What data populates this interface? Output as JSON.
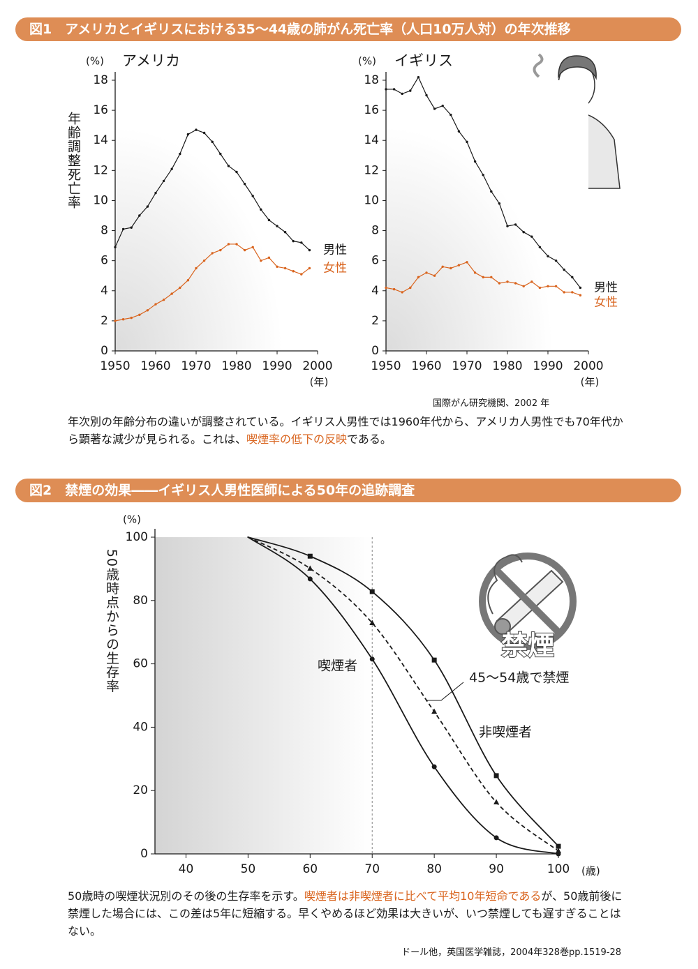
{
  "sections": [
    {
      "title": "図1　アメリカとイギリスにおける35～44歳の肺がん死亡率（人口10万人対）の年次推移",
      "source": "国際がん研究機関、2002 年",
      "caption": [
        {
          "text": "年次別の年齢分布の違いが調整されている。イギリス人男性では1960年代から、アメリカ人男性でも70年代から顕著な減少が見られる。これは、"
        },
        {
          "text": "喫煙率の低下の反映",
          "color": "#d9641e"
        },
        {
          "text": "である。"
        }
      ]
    },
    {
      "title": "図2　禁煙の効果――イギリス人男性医師による50年の追跡調査",
      "source": "ドール他，英国医学雑誌，2004年328巻pp.1519-28",
      "caption": [
        {
          "text": "50歳時の喫煙状況別のその後の生存率を示す。"
        },
        {
          "text": "喫煙者は非喫煙者に比べて平均10年短命である",
          "color": "#d9641e"
        },
        {
          "text": "が、50歳前後に禁煙した場合には、この差は5年に短縮する。早くやめるほど効果は大きいが、いつ禁煙しても遅すぎることはない。"
        }
      ]
    }
  ],
  "icon_label": "禁煙",
  "chart_data": [
    {
      "type": "line",
      "title": "アメリカ",
      "ylabel": "年齢調整死亡率",
      "y_unit": "(%)",
      "x_unit": "(年)",
      "x": [
        1950,
        1952,
        1954,
        1956,
        1958,
        1960,
        1962,
        1964,
        1966,
        1968,
        1970,
        1972,
        1974,
        1976,
        1978,
        1980,
        1982,
        1984,
        1986,
        1988,
        1990,
        1992,
        1994,
        1996,
        1998
      ],
      "xlim": [
        1950,
        2000
      ],
      "xticks": [
        1950,
        1960,
        1970,
        1980,
        1990,
        2000
      ],
      "ylim": [
        0,
        18
      ],
      "yticks": [
        0,
        2,
        4,
        6,
        8,
        10,
        12,
        14,
        16,
        18
      ],
      "series": [
        {
          "name": "男性",
          "color": "#1a1a1a",
          "values": [
            6.9,
            8.1,
            8.2,
            9.0,
            9.6,
            10.5,
            11.3,
            12.1,
            13.1,
            14.4,
            14.7,
            14.5,
            13.9,
            13.1,
            12.3,
            11.9,
            11.1,
            10.3,
            9.4,
            8.7,
            8.3,
            7.9,
            7.3,
            7.2,
            6.7
          ]
        },
        {
          "name": "女性",
          "color": "#d9641e",
          "values": [
            2.0,
            2.1,
            2.2,
            2.4,
            2.7,
            3.1,
            3.4,
            3.8,
            4.2,
            4.7,
            5.5,
            6.0,
            6.5,
            6.7,
            7.1,
            7.1,
            6.7,
            6.9,
            6.0,
            6.2,
            5.6,
            5.5,
            5.3,
            5.1,
            5.5
          ]
        }
      ]
    },
    {
      "type": "line",
      "title": "イギリス",
      "y_unit": "(%)",
      "x_unit": "(年)",
      "x": [
        1950,
        1952,
        1954,
        1956,
        1958,
        1960,
        1962,
        1964,
        1966,
        1968,
        1970,
        1972,
        1974,
        1976,
        1978,
        1980,
        1982,
        1984,
        1986,
        1988,
        1990,
        1992,
        1994,
        1996,
        1998
      ],
      "xlim": [
        1950,
        2000
      ],
      "xticks": [
        1950,
        1960,
        1970,
        1980,
        1990,
        2000
      ],
      "ylim": [
        0,
        18
      ],
      "yticks": [
        0,
        2,
        4,
        6,
        8,
        10,
        12,
        14,
        16,
        18
      ],
      "series": [
        {
          "name": "男性",
          "color": "#1a1a1a",
          "values": [
            17.4,
            17.4,
            17.1,
            17.3,
            18.2,
            17.0,
            16.1,
            16.3,
            15.7,
            14.6,
            13.9,
            12.6,
            11.7,
            10.6,
            9.8,
            8.3,
            8.4,
            7.9,
            7.6,
            6.9,
            6.3,
            6.0,
            5.4,
            4.9,
            4.2
          ]
        },
        {
          "name": "女性",
          "color": "#d9641e",
          "values": [
            4.2,
            4.1,
            3.9,
            4.2,
            4.9,
            5.2,
            5.0,
            5.6,
            5.5,
            5.7,
            5.9,
            5.2,
            4.9,
            4.9,
            4.5,
            4.6,
            4.5,
            4.3,
            4.6,
            4.2,
            4.3,
            4.3,
            3.9,
            3.9,
            3.7
          ]
        }
      ]
    },
    {
      "type": "curve",
      "ylabel": "50歳時点からの生存率",
      "y_unit": "(%)",
      "x_unit": "(歳)",
      "x": [
        50,
        60,
        70,
        80,
        90,
        100
      ],
      "xlim": [
        35,
        100
      ],
      "xticks": [
        40,
        50,
        60,
        70,
        80,
        90,
        100
      ],
      "ylim": [
        0,
        100
      ],
      "yticks": [
        0,
        20,
        40,
        60,
        80,
        100
      ],
      "reference_x": 70,
      "series": [
        {
          "name": "非喫煙者",
          "color": "#1a1a1a",
          "marker": "square",
          "dashed": false,
          "values": [
            100,
            94.0,
            82.8,
            61.2,
            24.7,
            2.4
          ]
        },
        {
          "name": "45～54歳で禁煙",
          "color": "#1a1a1a",
          "marker": "triangle",
          "dashed": true,
          "values": [
            100,
            90.1,
            72.9,
            44.9,
            16.3,
            0.9
          ]
        },
        {
          "name": "喫煙者",
          "color": "#1a1a1a",
          "marker": "circle",
          "dashed": false,
          "values": [
            100,
            86.8,
            61.5,
            27.5,
            5.1,
            0
          ]
        }
      ]
    }
  ]
}
